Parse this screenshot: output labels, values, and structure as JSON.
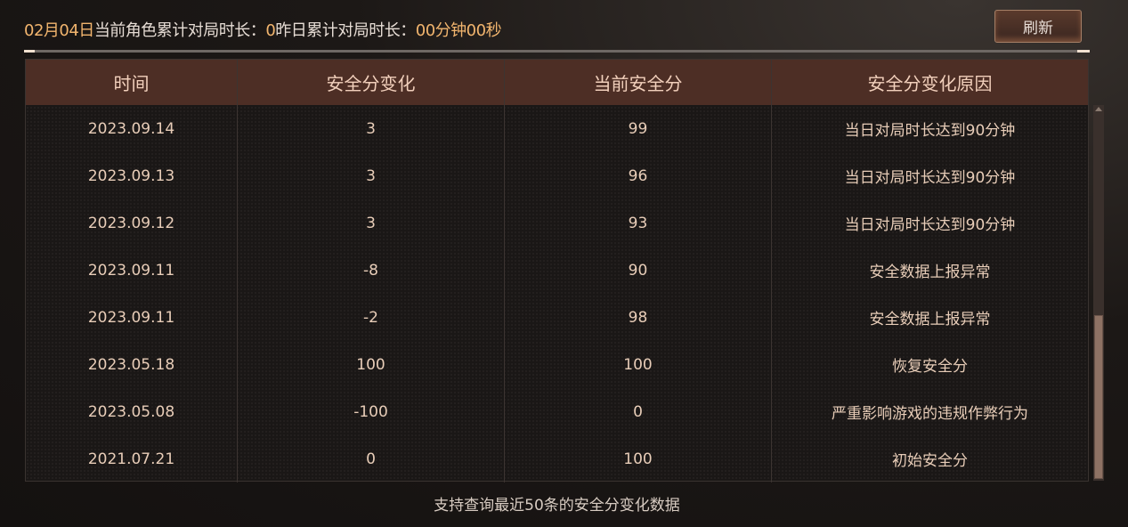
{
  "stats": {
    "date": "02月04日",
    "current_label": "当前角色累计对局时长：",
    "current_value": "0",
    "yesterday_label": "昨日累计对局时长：",
    "yesterday_value": "00分钟00秒"
  },
  "refresh_label": "刷新",
  "table": {
    "headers": [
      "时间",
      "安全分变化",
      "当前安全分",
      "安全分变化原因"
    ],
    "rows": [
      [
        "2023.09.14",
        "3",
        "99",
        "当日对局时长达到90分钟"
      ],
      [
        "2023.09.13",
        "3",
        "96",
        "当日对局时长达到90分钟"
      ],
      [
        "2023.09.12",
        "3",
        "93",
        "当日对局时长达到90分钟"
      ],
      [
        "2023.09.11",
        "-8",
        "90",
        "安全数据上报异常"
      ],
      [
        "2023.09.11",
        "-2",
        "98",
        "安全数据上报异常"
      ],
      [
        "2023.05.18",
        "100",
        "100",
        "恢复安全分"
      ],
      [
        "2023.05.08",
        "-100",
        "0",
        "严重影响游戏的违规作弊行为"
      ],
      [
        "2021.07.21",
        "0",
        "100",
        "初始安全分"
      ]
    ]
  },
  "footer": "支持查询最近50条的安全分变化数据",
  "colors": {
    "accent": "#f2b56e",
    "header_bg": "#4d2e25"
  }
}
